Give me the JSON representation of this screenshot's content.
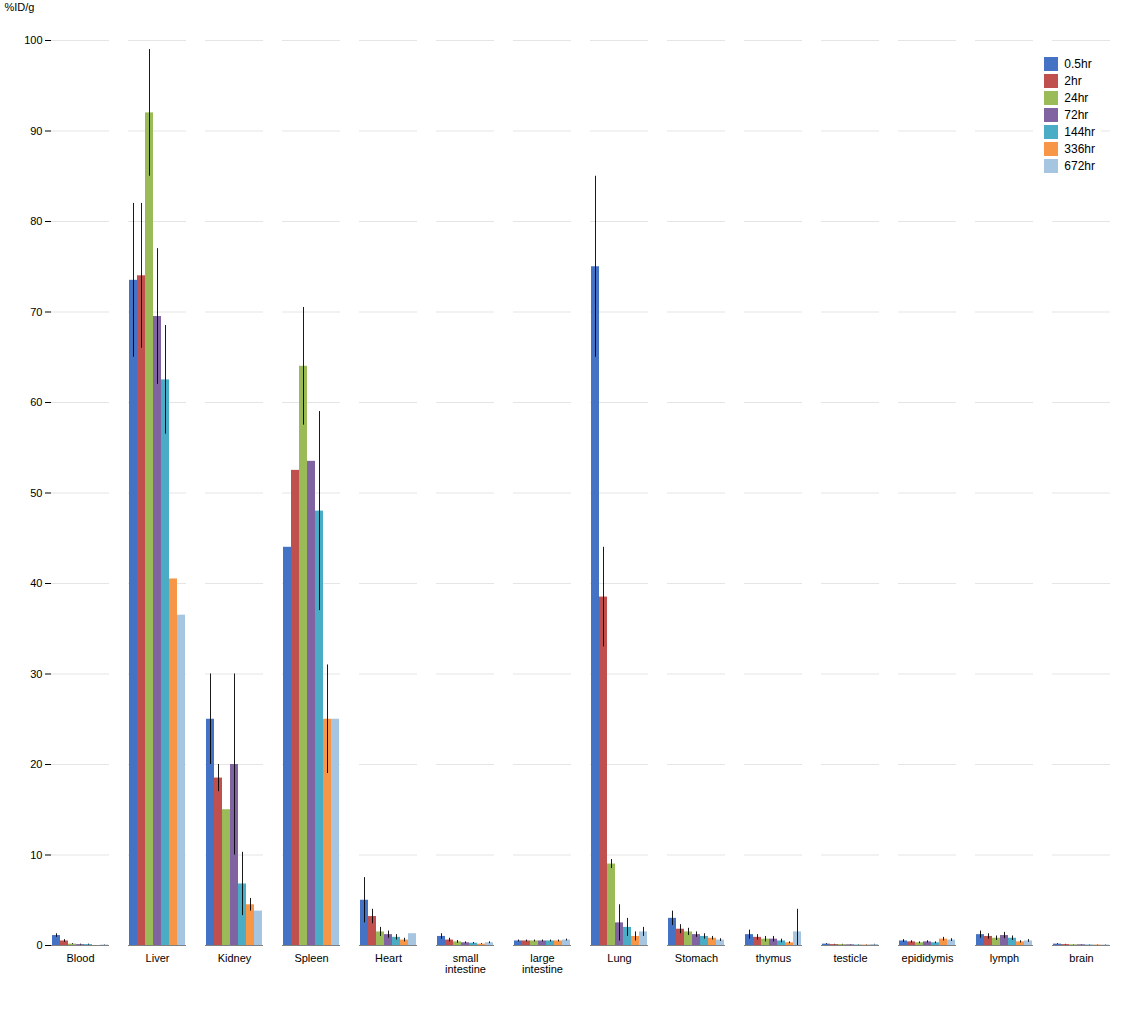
{
  "chart_data": {
    "type": "bar",
    "categories": [
      "Blood",
      "Liver",
      "Kidney",
      "Spleen",
      "Heart",
      "small\nintestine",
      "large\nintestine",
      "Lung",
      "Stomach",
      "thymus",
      "testicle",
      "epididymis",
      "lymph",
      "brain"
    ],
    "series": [
      {
        "name": "0.5hr",
        "color": "#4472C4",
        "values": [
          1.1,
          73.5,
          25.0,
          44.0,
          5.0,
          1.0,
          0.5,
          75.0,
          3.0,
          1.2,
          0.15,
          0.5,
          1.2,
          0.15
        ],
        "errors": [
          0.2,
          8.5,
          5.0,
          0.0,
          2.5,
          0.3,
          0.1,
          10.0,
          0.8,
          0.5,
          0.05,
          0.15,
          0.4,
          0.05
        ]
      },
      {
        "name": "2hr",
        "color": "#C0504D",
        "values": [
          0.5,
          74.0,
          18.5,
          52.5,
          3.2,
          0.6,
          0.5,
          38.5,
          1.8,
          0.9,
          0.1,
          0.4,
          1.0,
          0.1
        ],
        "errors": [
          0.15,
          8.0,
          1.5,
          0.0,
          0.8,
          0.2,
          0.1,
          5.5,
          0.5,
          0.3,
          0.03,
          0.12,
          0.3,
          0.03
        ]
      },
      {
        "name": "24hr",
        "color": "#9BBB59",
        "values": [
          0.15,
          92.0,
          15.0,
          64.0,
          1.5,
          0.4,
          0.5,
          9.0,
          1.5,
          0.7,
          0.1,
          0.3,
          0.8,
          0.08
        ],
        "errors": [
          0.05,
          7.0,
          0.0,
          6.5,
          0.5,
          0.15,
          0.1,
          0.5,
          0.4,
          0.3,
          0.03,
          0.1,
          0.25,
          0.02
        ]
      },
      {
        "name": "72hr",
        "color": "#8064A2",
        "values": [
          0.1,
          69.5,
          20.0,
          53.5,
          1.2,
          0.3,
          0.5,
          2.5,
          1.2,
          0.7,
          0.08,
          0.4,
          1.1,
          0.08
        ],
        "errors": [
          0.05,
          7.5,
          10.0,
          0.0,
          0.4,
          0.1,
          0.1,
          2.0,
          0.3,
          0.3,
          0.02,
          0.12,
          0.35,
          0.02
        ]
      },
      {
        "name": "144hr",
        "color": "#4BACC6",
        "values": [
          0.1,
          62.5,
          6.8,
          48.0,
          0.9,
          0.25,
          0.5,
          2.0,
          1.0,
          0.5,
          0.05,
          0.3,
          0.8,
          0.05
        ],
        "errors": [
          0.05,
          6.0,
          3.5,
          11.0,
          0.3,
          0.08,
          0.1,
          1.0,
          0.3,
          0.2,
          0.02,
          0.1,
          0.25,
          0.02
        ]
      },
      {
        "name": "336hr",
        "color": "#F79646",
        "values": [
          0.0,
          40.5,
          4.5,
          25.0,
          0.6,
          0.15,
          0.5,
          1.0,
          0.8,
          0.3,
          0.05,
          0.7,
          0.4,
          0.05
        ],
        "errors": [
          0.0,
          0.0,
          0.7,
          6.0,
          0.2,
          0.05,
          0.1,
          0.5,
          0.2,
          0.1,
          0.02,
          0.2,
          0.12,
          0.02
        ]
      },
      {
        "name": "672hr",
        "color": "#A5C5E0",
        "values": [
          0.05,
          36.5,
          3.8,
          25.0,
          1.3,
          0.3,
          0.6,
          1.5,
          0.6,
          1.5,
          0.1,
          0.6,
          0.5,
          0.05
        ],
        "errors": [
          0.02,
          0.0,
          0.0,
          0.0,
          0.0,
          0.1,
          0.1,
          0.5,
          0.15,
          2.5,
          0.03,
          0.15,
          0.15,
          0.02
        ]
      }
    ],
    "ylabel": "%ID/g",
    "ylim": [
      0,
      100
    ],
    "yticks": [
      0,
      10,
      20,
      30,
      40,
      50,
      60,
      70,
      80,
      90,
      100
    ],
    "grid": true,
    "legend": "upper right"
  }
}
